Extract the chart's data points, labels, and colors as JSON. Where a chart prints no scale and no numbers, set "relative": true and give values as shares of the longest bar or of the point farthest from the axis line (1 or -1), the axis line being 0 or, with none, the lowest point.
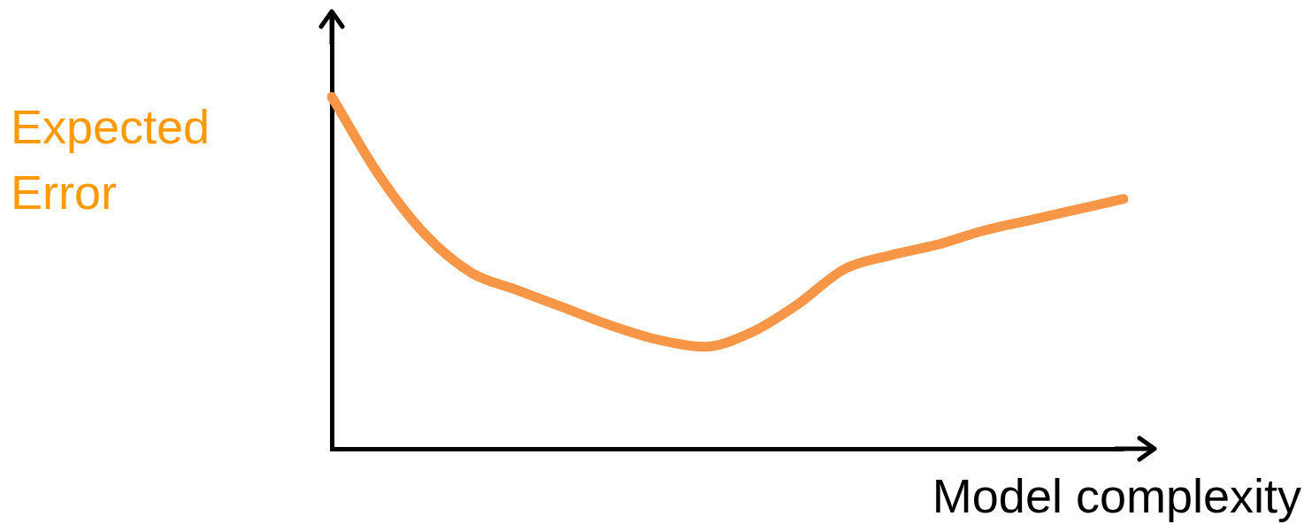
{
  "chart_data": {
    "type": "line",
    "relative": true,
    "xlabel": "Model complexity",
    "ylabel": "Expected Error",
    "categories": [
      null,
      null,
      null,
      null,
      null,
      null,
      null,
      null,
      null,
      null,
      null,
      null,
      null,
      null,
      null,
      null,
      null,
      null
    ],
    "series": [
      {
        "color": "#f79646",
        "values": [
          1,
          0.78,
          0.61,
          0.5,
          0.45,
          0.4,
          0.35,
          0.31,
          0.29,
          0.33,
          0.41,
          0.51,
          0.55,
          0.58,
          0.62,
          0.65,
          0.68,
          0.71
        ]
      }
    ],
    "grid": false,
    "legend": false,
    "marker": "none",
    "line_style": "solid"
  }
}
